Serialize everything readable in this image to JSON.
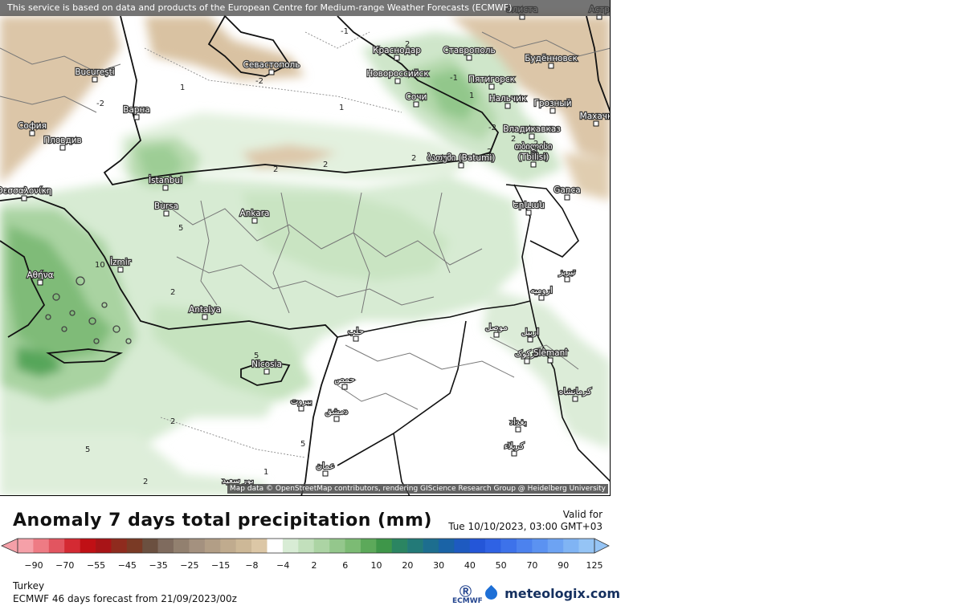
{
  "map": {
    "notice": "This service is based on data and products of the European Centre for Medium-range Weather Forecasts (ECMWF)",
    "attribution": "Map data © OpenStreetMap contributors, rendering GIScience Research Group @ Heidelberg University",
    "cities": [
      {
        "name": "Bucureşti"
      },
      {
        "name": "София"
      },
      {
        "name": "Пловдив"
      },
      {
        "name": "Варна"
      },
      {
        "name": "Севастополь"
      },
      {
        "name": "Краснодар"
      },
      {
        "name": "Ставрополь"
      },
      {
        "name": "Элиста"
      },
      {
        "name": "Астр"
      },
      {
        "name": "Будённовск"
      },
      {
        "name": "Новороссийск"
      },
      {
        "name": "Пятигорск"
      },
      {
        "name": "Нальчик"
      },
      {
        "name": "Грозный"
      },
      {
        "name": "Махачк"
      },
      {
        "name": "Сочи"
      },
      {
        "name": "Владикавказ"
      },
      {
        "name": "თბილისი"
      },
      {
        "name": "(Tbilisi)"
      },
      {
        "name": "ბათუმი (Batumi)"
      },
      {
        "name": "Ganca"
      },
      {
        "name": "Երևան"
      },
      {
        "name": "İstanbul"
      },
      {
        "name": "Bursa"
      },
      {
        "name": "Ankara"
      },
      {
        "name": "Θεσσαλονίκη"
      },
      {
        "name": "İzmir"
      },
      {
        "name": "Αθήνα"
      },
      {
        "name": "Antalya"
      },
      {
        "name": "Nicosia"
      },
      {
        "name": "حلب"
      },
      {
        "name": "حمص"
      },
      {
        "name": "بيروت"
      },
      {
        "name": "دمشق"
      },
      {
        "name": "عمان"
      },
      {
        "name": "موصل"
      },
      {
        "name": "اربيل"
      },
      {
        "name": "کرکوک"
      },
      {
        "name": "Slêmanî"
      },
      {
        "name": "بغداد"
      },
      {
        "name": "كرمانشاه"
      },
      {
        "name": "كربلاء"
      },
      {
        "name": "تبريز"
      },
      {
        "name": "ارومیه"
      },
      {
        "name": "بور سعيد"
      }
    ],
    "contour_labels": [
      "-1",
      "-2",
      "2",
      "1",
      "-2",
      "1",
      "2",
      "1",
      "2",
      "2",
      "2",
      "-2",
      "2",
      "5",
      "10",
      "2",
      "5",
      "5",
      "2",
      "5",
      "2",
      "1",
      "2",
      "-1"
    ]
  },
  "legend": {
    "title": "Anomaly 7 days total precipitation (mm)",
    "valid_label": "Valid for",
    "valid_time": "Tue 10/10/2023, 03:00 GMT+03",
    "tick_labels": [
      "−90",
      "−70",
      "−55",
      "−45",
      "−35",
      "−25",
      "−15",
      "−8",
      "−4",
      "2",
      "6",
      "10",
      "20",
      "30",
      "40",
      "50",
      "70",
      "90",
      "125"
    ],
    "colors": [
      "#f5a0a8",
      "#ee7b84",
      "#e25560",
      "#d42a33",
      "#c01015",
      "#a81417",
      "#8f2b1e",
      "#7a3a25",
      "#6b5040",
      "#7f6b5e",
      "#92806f",
      "#a4917f",
      "#b29e86",
      "#c0ab8e",
      "#cdb897",
      "#dcc7a6",
      "#ffffff",
      "#d8ecd5",
      "#c2e0bc",
      "#acd4a4",
      "#94c78c",
      "#7cbb74",
      "#5ca95a",
      "#3e9649",
      "#2b8562",
      "#237a78",
      "#1d6e8f",
      "#1a63a6",
      "#1e5ac0",
      "#2456d8",
      "#2f62e4",
      "#3d72ea",
      "#4c82ee",
      "#5b92f1",
      "#6da3f3",
      "#80b4f4",
      "#95c4f5"
    ],
    "region": "Turkey",
    "forecast": "ECMWF 46 days forecast from  21/09/2023/00z",
    "ecmwf_logo_text": "ECMWF",
    "brand": "meteologix.com"
  }
}
